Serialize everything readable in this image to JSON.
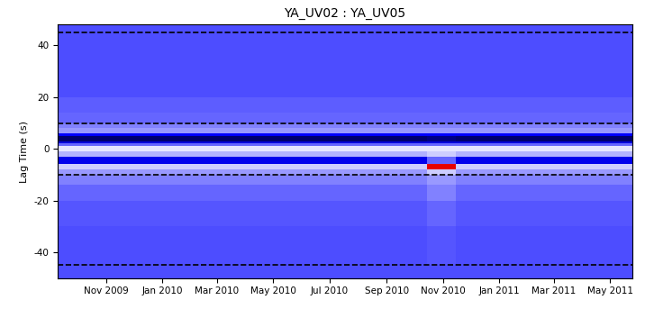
{
  "chart_data": {
    "type": "heatmap",
    "title": "YA_UV02 : YA_UV05",
    "ylabel": "Lag Time (s)",
    "x_edges": [
      "2009-09-10",
      "2010-01-01",
      "2010-05-01",
      "2010-09-01",
      "2010-10-15",
      "2010-11-15",
      "2011-01-01",
      "2011-05-25"
    ],
    "y_edges": [
      -50,
      -45,
      -30,
      -20,
      -14,
      -10,
      -8,
      -6,
      -3,
      -1,
      1,
      2,
      3,
      5,
      6,
      8,
      10,
      14,
      20,
      30,
      45,
      48
    ],
    "cells": [
      [
        -0.35,
        -0.35,
        -0.35,
        -0.35,
        -0.35,
        -0.35,
        -0.35
      ],
      [
        -0.35,
        -0.35,
        -0.35,
        -0.35,
        -0.33,
        -0.35,
        -0.35
      ],
      [
        -0.33,
        -0.33,
        -0.33,
        -0.33,
        -0.3,
        -0.33,
        -0.33
      ],
      [
        -0.3,
        -0.3,
        -0.3,
        -0.3,
        -0.25,
        -0.3,
        -0.3
      ],
      [
        -0.25,
        -0.25,
        -0.25,
        -0.25,
        -0.2,
        -0.25,
        -0.25
      ],
      [
        -0.2,
        -0.2,
        -0.2,
        -0.2,
        -0.1,
        -0.2,
        -0.2
      ],
      [
        -0.1,
        -0.1,
        -0.1,
        -0.1,
        0.6,
        -0.1,
        -0.1
      ],
      [
        -0.55,
        -0.55,
        -0.55,
        -0.55,
        -0.3,
        -0.55,
        -0.55
      ],
      [
        -0.15,
        -0.15,
        -0.15,
        -0.15,
        -0.1,
        -0.15,
        -0.15
      ],
      [
        -0.05,
        -0.05,
        -0.05,
        -0.05,
        -0.05,
        -0.05,
        -0.05
      ],
      [
        -0.3,
        -0.3,
        -0.3,
        -0.3,
        -0.3,
        -0.3,
        -0.3
      ],
      [
        -0.6,
        -0.6,
        -0.6,
        -0.6,
        -0.6,
        -0.6,
        -0.6
      ],
      [
        -0.9,
        -0.9,
        -0.9,
        -0.9,
        -0.85,
        -0.9,
        -0.9
      ],
      [
        -0.5,
        -0.5,
        -0.5,
        -0.5,
        -0.5,
        -0.5,
        -0.5
      ],
      [
        -0.2,
        -0.2,
        -0.2,
        -0.2,
        -0.2,
        -0.2,
        -0.2
      ],
      [
        -0.25,
        -0.25,
        -0.25,
        -0.25,
        -0.25,
        -0.25,
        -0.25
      ],
      [
        -0.3,
        -0.3,
        -0.3,
        -0.3,
        -0.3,
        -0.3,
        -0.3
      ],
      [
        -0.32,
        -0.32,
        -0.32,
        -0.32,
        -0.32,
        -0.32,
        -0.32
      ],
      [
        -0.35,
        -0.35,
        -0.35,
        -0.35,
        -0.35,
        -0.35,
        -0.35
      ],
      [
        -0.35,
        -0.35,
        -0.35,
        -0.35,
        -0.35,
        -0.35,
        -0.35
      ],
      [
        -0.35,
        -0.35,
        -0.35,
        -0.35,
        -0.35,
        -0.35,
        -0.35
      ]
    ],
    "clim": [
      -1,
      1
    ],
    "reference_lines": [
      -45,
      -10,
      10,
      45
    ],
    "line_style": "dashed",
    "xlim": [
      "2009-09-10",
      "2011-05-25"
    ],
    "ylim": [
      -50,
      48
    ],
    "xticks": [
      {
        "value": "2009-11-01",
        "label": "Nov 2009"
      },
      {
        "value": "2010-01-01",
        "label": "Jan 2010"
      },
      {
        "value": "2010-03-01",
        "label": "Mar 2010"
      },
      {
        "value": "2010-05-01",
        "label": "May 2010"
      },
      {
        "value": "2010-07-01",
        "label": "Jul 2010"
      },
      {
        "value": "2010-09-01",
        "label": "Sep 2010"
      },
      {
        "value": "2010-11-01",
        "label": "Nov 2010"
      },
      {
        "value": "2011-01-01",
        "label": "Jan 2011"
      },
      {
        "value": "2011-03-01",
        "label": "Mar 2011"
      },
      {
        "value": "2011-05-01",
        "label": "May 2011"
      }
    ],
    "yticks": [
      -40,
      -20,
      0,
      20,
      40
    ],
    "grid": false
  }
}
